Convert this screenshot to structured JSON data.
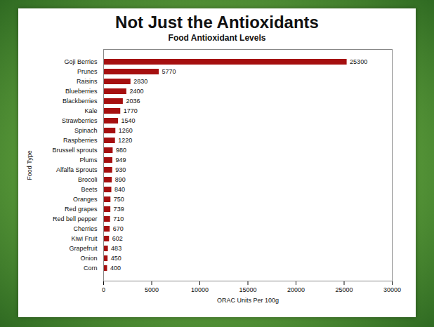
{
  "heading": "Not Just the Antioxidants",
  "chart_data": {
    "type": "bar",
    "orientation": "horizontal",
    "title": "Food Antioxidant Levels",
    "x_label": "ORAC Units Per 100g",
    "y_label": "Food Type",
    "categories": [
      "Goji Berries",
      "Prunes",
      "Raisins",
      "Blueberries",
      "Blackberries",
      "Kale",
      "Strawberries",
      "Spinach",
      "Raspberries",
      "Brussell sprouts",
      "Plums",
      "Alfalfa Sprouts",
      "Brocoli",
      "Beets",
      "Oranges",
      "Red grapes",
      "Red bell pepper",
      "Cherries",
      "Kiwi Fruit",
      "Grapefruit",
      "Onion",
      "Corn"
    ],
    "values": [
      25300,
      5770,
      2830,
      2400,
      2036,
      1770,
      1540,
      1260,
      1220,
      980,
      949,
      930,
      890,
      840,
      750,
      739,
      710,
      670,
      602,
      483,
      450,
      400
    ],
    "color": "#a50f0f",
    "xlim": [
      0,
      30000
    ],
    "xticks": [
      0,
      5000,
      10000,
      15000,
      20000,
      25000,
      30000
    ],
    "grid": false,
    "data_labels": true
  }
}
